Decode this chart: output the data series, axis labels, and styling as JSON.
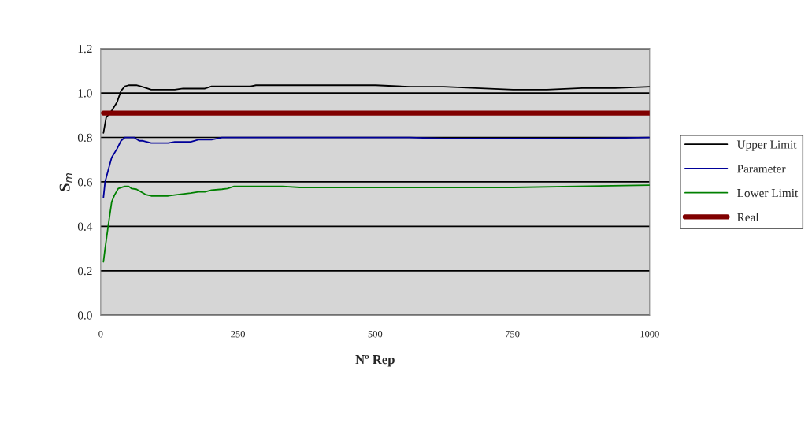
{
  "chart_data": {
    "type": "line",
    "xlabel": "Nº Rep",
    "ylabel": "S$_{m}$",
    "xlim": [
      0,
      1000
    ],
    "xticks": [
      0,
      250,
      500,
      750,
      1000
    ],
    "ylim": [
      0,
      1.2
    ],
    "yticks": [
      {
        "value": 0,
        "label": "0.0"
      },
      {
        "value": 0.2,
        "label": "0.2"
      },
      {
        "value": 0.4,
        "label": "0.4"
      },
      {
        "value": 0.6,
        "label": "0.6"
      },
      {
        "value": 0.8,
        "label": "0.8"
      },
      {
        "value": 1.0,
        "label": "1.0"
      },
      {
        "value": 1.2,
        "label": "1.2"
      }
    ],
    "grid": "y",
    "legend": "right",
    "marker": "none",
    "line_style": "solid",
    "series": [
      {
        "name": "Upper Limit",
        "color": "#000000",
        "x": [
          5,
          10,
          20,
          30,
          37,
          44,
          51,
          65,
          73,
          80,
          92,
          135,
          150,
          190,
          202,
          273,
          283,
          501,
          563,
          625,
          751,
          813,
          877,
          937,
          1000
        ],
        "values": [
          0.82,
          0.89,
          0.92,
          0.96,
          1.01,
          1.03,
          1.035,
          1.035,
          1.03,
          1.025,
          1.015,
          1.015,
          1.02,
          1.02,
          1.03,
          1.03,
          1.035,
          1.035,
          1.028,
          1.028,
          1.015,
          1.015,
          1.022,
          1.022,
          1.028
        ]
      },
      {
        "name": "Parameter",
        "color": "#000099",
        "x": [
          5,
          8,
          15,
          20,
          30,
          37,
          44,
          61,
          70,
          77,
          92,
          123,
          135,
          164,
          178,
          202,
          221,
          563,
          625,
          877,
          1000
        ],
        "values": [
          0.53,
          0.6,
          0.665,
          0.71,
          0.75,
          0.785,
          0.8,
          0.8,
          0.785,
          0.785,
          0.775,
          0.775,
          0.78,
          0.78,
          0.79,
          0.79,
          0.8,
          0.8,
          0.795,
          0.795,
          0.8
        ]
      },
      {
        "name": "Lower Limit",
        "color": "#008000",
        "x": [
          5,
          8,
          13,
          20,
          25,
          32,
          44,
          51,
          56,
          65,
          82,
          92,
          123,
          140,
          164,
          178,
          190,
          202,
          221,
          231,
          243,
          331,
          363,
          751,
          1000
        ],
        "values": [
          0.24,
          0.3,
          0.39,
          0.51,
          0.54,
          0.57,
          0.58,
          0.58,
          0.57,
          0.567,
          0.543,
          0.537,
          0.537,
          0.543,
          0.55,
          0.555,
          0.555,
          0.563,
          0.567,
          0.57,
          0.58,
          0.58,
          0.575,
          0.575,
          0.585
        ]
      },
      {
        "name": "Real",
        "color": "#800000",
        "x": [
          5,
          1000
        ],
        "values": [
          0.91,
          0.91
        ]
      }
    ]
  }
}
